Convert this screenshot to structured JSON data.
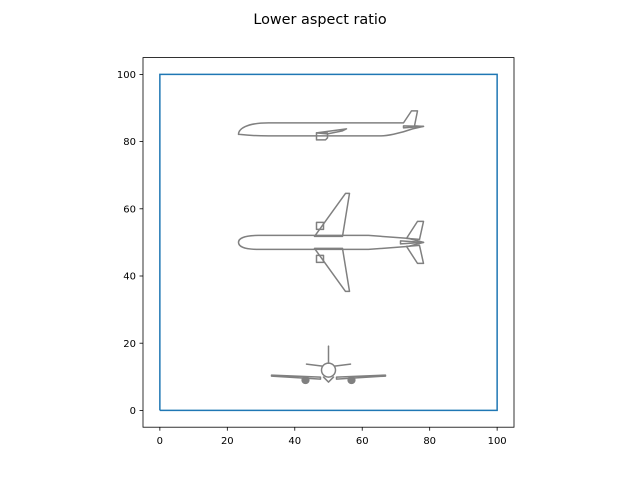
{
  "chart_data": {
    "type": "line",
    "title": "Lower aspect ratio",
    "xlabel": "",
    "ylabel": "",
    "xlim": [
      -5,
      105
    ],
    "ylim": [
      -5,
      105
    ],
    "xticks": [
      0,
      20,
      40,
      60,
      80,
      100
    ],
    "yticks": [
      0,
      20,
      40,
      60,
      80,
      100
    ],
    "grid": false,
    "series": [
      {
        "color": "#1f77b4",
        "x": [
          0,
          100,
          100,
          0,
          0
        ],
        "y": [
          0,
          0,
          100,
          100,
          0
        ]
      }
    ],
    "drawings": [
      {
        "icon": "airplane-side-view-icon",
        "center": [
          50,
          82
        ]
      },
      {
        "icon": "airplane-top-view-icon",
        "center": [
          50,
          50
        ]
      },
      {
        "icon": "airplane-front-view-icon",
        "center": [
          50,
          12
        ]
      }
    ],
    "drawing_color": "#808080"
  }
}
